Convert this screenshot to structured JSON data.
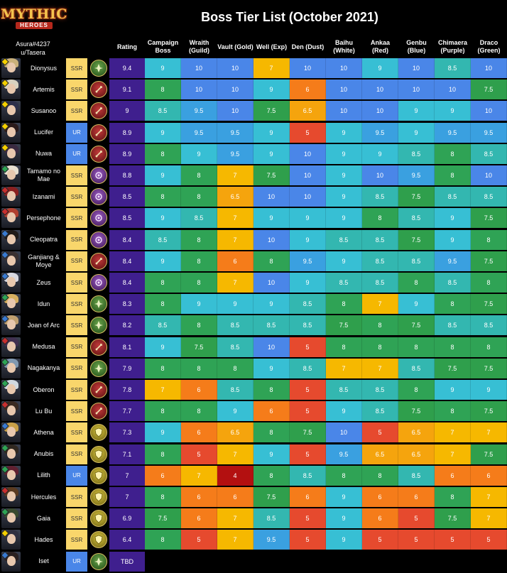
{
  "logo": {
    "main": "MYTHIC",
    "sub": "HEROES"
  },
  "title": "Boss Tier List (October 2021)",
  "author": {
    "line1": "Asura#4237",
    "line2": "u/Tasera"
  },
  "columns": [
    {
      "label": "Rating"
    },
    {
      "label": "Campaign Boss"
    },
    {
      "label": "Wraith (Guild)"
    },
    {
      "label": "Vault (Gold)"
    },
    {
      "label": "Well (Exp)"
    },
    {
      "label": "Den (Dust)"
    },
    {
      "label": "Baihu (White)"
    },
    {
      "label": "Ankaa (Red)"
    },
    {
      "label": "Genbu (Blue)"
    },
    {
      "label": "Chimaera (Purple)"
    },
    {
      "label": "Draco (Green)"
    }
  ],
  "colors": {
    "10": "#4a86e8",
    "9.5": "#3aa0e0",
    "9": "#37bfd4",
    "8.5": "#33b7b0",
    "8": "#2fa355",
    "7.5": "#2f9f4c",
    "7": "#f6b800",
    "6.5": "#f5a40d",
    "6": "#f57c1a",
    "5": "#e64a2e",
    "4": "#b31010",
    "rating": "#3f1f8e",
    "ssr": "#f9d66b",
    "ur": "#4a86e8"
  },
  "heroes": [
    {
      "name": "Dionysus",
      "rarity": "SSR",
      "class_icon": "support-class-icon",
      "rating": "9.4",
      "scores": [
        "9",
        "10",
        "10",
        "7",
        "10",
        "10",
        "9",
        "10",
        "8.5",
        "10"
      ]
    },
    {
      "name": "Artemis",
      "rarity": "SSR",
      "class_icon": "dps-class-icon",
      "rating": "9.1",
      "scores": [
        "8",
        "10",
        "10",
        "9",
        "6",
        "10",
        "10",
        "10",
        "10",
        "7.5"
      ]
    },
    {
      "name": "Susanoo",
      "rarity": "SSR",
      "class_icon": "dps-class-icon",
      "rating": "9",
      "scores": [
        "8.5",
        "9.5",
        "10",
        "7.5",
        "6.5",
        "10",
        "10",
        "9",
        "9",
        "10"
      ]
    },
    {
      "name": "Lucifer",
      "rarity": "UR",
      "class_icon": "dps-class-icon",
      "rating": "8.9",
      "scores": [
        "9",
        "9.5",
        "9.5",
        "9",
        "5",
        "9",
        "9.5",
        "9",
        "9.5",
        "9.5"
      ]
    },
    {
      "name": "Nuwa",
      "rarity": "UR",
      "class_icon": "dps-class-icon",
      "rating": "8.9",
      "scores": [
        "8",
        "9",
        "9.5",
        "9",
        "10",
        "9",
        "9",
        "8.5",
        "8",
        "8.5"
      ]
    },
    {
      "name": "Tamamo no Mae",
      "rarity": "SSR",
      "class_icon": "control-class-icon",
      "rating": "8.8",
      "scores": [
        "9",
        "8",
        "7",
        "7.5",
        "10",
        "9",
        "10",
        "9.5",
        "8",
        "10"
      ]
    },
    {
      "name": "Izanami",
      "rarity": "SSR",
      "class_icon": "control-class-icon",
      "rating": "8.5",
      "scores": [
        "8",
        "8",
        "6.5",
        "10",
        "10",
        "9",
        "8.5",
        "7.5",
        "8.5",
        "8.5"
      ]
    },
    {
      "name": "Persephone",
      "rarity": "SSR",
      "class_icon": "control-class-icon",
      "rating": "8.5",
      "scores": [
        "9",
        "8.5",
        "7",
        "9",
        "9",
        "9",
        "8",
        "8.5",
        "9",
        "7.5"
      ]
    },
    {
      "name": "Cleopatra",
      "rarity": "SSR",
      "class_icon": "control-class-icon",
      "rating": "8.4",
      "scores": [
        "8.5",
        "8",
        "7",
        "10",
        "9",
        "8.5",
        "8.5",
        "7.5",
        "9",
        "8"
      ]
    },
    {
      "name": "Ganjiang & Moye",
      "rarity": "SSR",
      "class_icon": "dps-class-icon",
      "rating": "8.4",
      "scores": [
        "9",
        "8",
        "6",
        "8",
        "9.5",
        "9",
        "8.5",
        "8.5",
        "9.5",
        "7.5"
      ]
    },
    {
      "name": "Zeus",
      "rarity": "SSR",
      "class_icon": "control-class-icon",
      "rating": "8.4",
      "scores": [
        "8",
        "8",
        "7",
        "10",
        "9",
        "8.5",
        "8.5",
        "8",
        "8.5",
        "8"
      ]
    },
    {
      "name": "Idun",
      "rarity": "SSR",
      "class_icon": "support-class-icon",
      "rating": "8.3",
      "scores": [
        "8",
        "9",
        "9",
        "9",
        "8.5",
        "8",
        "7",
        "9",
        "8",
        "7.5"
      ]
    },
    {
      "name": "Joan of Arc",
      "rarity": "SSR",
      "class_icon": "support-class-icon",
      "rating": "8.2",
      "scores": [
        "8.5",
        "8",
        "8.5",
        "8.5",
        "8.5",
        "7.5",
        "8",
        "7.5",
        "8.5",
        "8.5"
      ]
    },
    {
      "name": "Medusa",
      "rarity": "SSR",
      "class_icon": "dps-class-icon",
      "rating": "8.1",
      "scores": [
        "9",
        "7.5",
        "8.5",
        "10",
        "5",
        "8",
        "8",
        "8",
        "8",
        "8"
      ]
    },
    {
      "name": "Nagakanya",
      "rarity": "SSR",
      "class_icon": "support-class-icon",
      "rating": "7.9",
      "scores": [
        "8",
        "8",
        "8",
        "9",
        "8.5",
        "7",
        "7",
        "8.5",
        "7.5",
        "7.5"
      ]
    },
    {
      "name": "Oberon",
      "rarity": "SSR",
      "class_icon": "dps-class-icon",
      "rating": "7.8",
      "scores": [
        "7",
        "6",
        "8.5",
        "8",
        "5",
        "8.5",
        "8.5",
        "8",
        "9",
        "9"
      ]
    },
    {
      "name": "Lu Bu",
      "rarity": "SSR",
      "class_icon": "dps-class-icon",
      "rating": "7.7",
      "scores": [
        "8",
        "8",
        "9",
        "6",
        "5",
        "9",
        "8.5",
        "7.5",
        "8",
        "7.5"
      ]
    },
    {
      "name": "Athena",
      "rarity": "SSR",
      "class_icon": "tank-class-icon",
      "rating": "7.3",
      "scores": [
        "9",
        "6",
        "6.5",
        "8",
        "7.5",
        "10",
        "5",
        "6.5",
        "7",
        "7"
      ]
    },
    {
      "name": "Anubis",
      "rarity": "SSR",
      "class_icon": "tank-class-icon",
      "rating": "7.1",
      "scores": [
        "8",
        "5",
        "7",
        "9",
        "5",
        "9.5",
        "6.5",
        "6.5",
        "7",
        "7.5"
      ]
    },
    {
      "name": "Lilith",
      "rarity": "UR",
      "class_icon": "tank-class-icon",
      "rating": "7",
      "scores": [
        "6",
        "7",
        "4",
        "8",
        "8.5",
        "8",
        "8",
        "8.5",
        "6",
        "6"
      ]
    },
    {
      "name": "Hercules",
      "rarity": "SSR",
      "class_icon": "tank-class-icon",
      "rating": "7",
      "scores": [
        "8",
        "6",
        "6",
        "7.5",
        "6",
        "9",
        "6",
        "6",
        "8",
        "7"
      ]
    },
    {
      "name": "Gaia",
      "rarity": "SSR",
      "class_icon": "tank-class-icon",
      "rating": "6.9",
      "scores": [
        "7.5",
        "6",
        "7",
        "8.5",
        "5",
        "9",
        "6",
        "5",
        "7.5",
        "7"
      ]
    },
    {
      "name": "Hades",
      "rarity": "SSR",
      "class_icon": "tank-class-icon",
      "rating": "6.4",
      "scores": [
        "8",
        "5",
        "7",
        "9.5",
        "5",
        "9",
        "5",
        "5",
        "5",
        "5"
      ]
    },
    {
      "name": "Iset",
      "rarity": "UR",
      "class_icon": "support-class-icon",
      "rating": "TBD",
      "scores": []
    }
  ]
}
